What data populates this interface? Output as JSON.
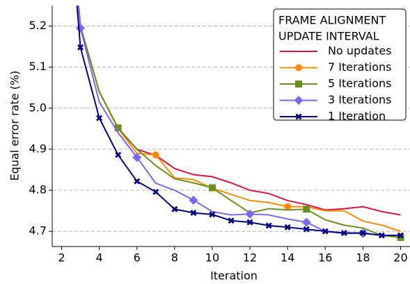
{
  "chart_data": {
    "type": "line",
    "x_label": "Iteration",
    "y_label": "Equal error rate (%)",
    "x": [
      2,
      3,
      4,
      5,
      6,
      7,
      8,
      9,
      10,
      11,
      12,
      13,
      14,
      15,
      16,
      17,
      18,
      19,
      20
    ],
    "xlim": [
      1.5,
      20.5
    ],
    "xticks": [
      2,
      4,
      6,
      8,
      10,
      12,
      14,
      16,
      18,
      20
    ],
    "ylim": [
      4.663,
      5.25
    ],
    "yticks": [
      4.7,
      4.8,
      4.9,
      {
        "value": 5.0,
        "label": "5.0"
      },
      5.1,
      5.2
    ],
    "grid": "y",
    "legend": "upper right",
    "legend_title": [
      "FRAME ALIGNMENT",
      "UPDATE INTERVAL"
    ],
    "series": [
      {
        "name": "No updates",
        "color": "#d6173f",
        "marker": "none",
        "markevery": 1,
        "values": [
          5.7,
          5.2,
          5.04,
          4.95,
          4.9,
          4.885,
          4.853,
          4.838,
          4.833,
          4.818,
          4.8,
          4.792,
          4.775,
          4.765,
          4.752,
          4.755,
          4.76,
          4.748,
          4.74
        ]
      },
      {
        "name": "7 Iterations",
        "color": "#ff8c00",
        "marker": "circle",
        "markevery": 7,
        "values": [
          5.7,
          5.2,
          5.04,
          4.95,
          4.89,
          4.886,
          4.83,
          4.826,
          4.805,
          4.79,
          4.775,
          4.77,
          4.76,
          4.76,
          4.75,
          4.75,
          4.725,
          4.715,
          4.7
        ]
      },
      {
        "name": "5 Iterations",
        "color": "#6b8e23",
        "marker": "square",
        "markevery": 5,
        "values": [
          5.7,
          5.2,
          5.04,
          4.952,
          4.9,
          4.86,
          4.828,
          4.818,
          4.806,
          4.775,
          4.745,
          4.755,
          4.752,
          4.754,
          4.728,
          4.715,
          4.708,
          4.69,
          4.685
        ]
      },
      {
        "name": "3 Iterations",
        "color": "#7b68ee",
        "marker": "diamond",
        "markevery": 3,
        "values": [
          5.7,
          5.195,
          5.015,
          4.94,
          4.88,
          4.817,
          4.8,
          4.776,
          4.748,
          4.74,
          4.742,
          4.74,
          4.73,
          4.722,
          4.7,
          4.695,
          4.695,
          4.69,
          4.69
        ]
      },
      {
        "name": "1 Iteration",
        "color": "#000080",
        "marker": "x",
        "markevery": 1,
        "values": [
          5.7,
          5.148,
          4.976,
          4.886,
          4.822,
          4.796,
          4.754,
          4.745,
          4.741,
          4.726,
          4.722,
          4.714,
          4.71,
          4.705,
          4.7,
          4.696,
          4.696,
          4.69,
          4.69
        ]
      }
    ]
  }
}
